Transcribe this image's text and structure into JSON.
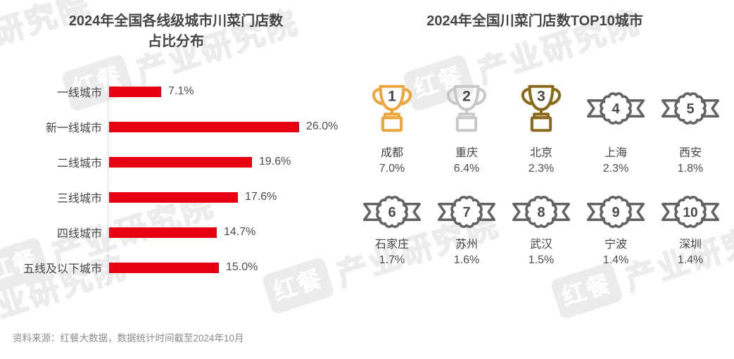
{
  "colors": {
    "bar-red": "#e60012",
    "gold": "#eda63c",
    "silver": "#c8c8c8",
    "bronze": "#8a691a",
    "badge-gray": "#636363",
    "title-text": "#454545",
    "body-text": "#4d4d4d",
    "source-text": "#8c8c8c",
    "axis-line": "#d9d9d9",
    "watermark": "#ececec"
  },
  "left_chart": {
    "title_line1": "2024年全国各线级城市川菜门店数",
    "title_line2": "占比分布"
  },
  "right_chart": {
    "title": "2024年全国川菜门店数TOP10城市"
  },
  "source_note": "资料来源：红餐大数据，数据统计时间截至2024年10月",
  "watermark": {
    "logo_text": "红餐",
    "text": "产业研究院"
  },
  "chart_data": [
    {
      "type": "bar",
      "orientation": "horizontal",
      "title": "2024年全国各线级城市川菜门店数占比分布",
      "categories": [
        "一线城市",
        "新一线城市",
        "二线城市",
        "三线城市",
        "四线城市",
        "五线及以下城市"
      ],
      "values": [
        7.1,
        26.0,
        19.6,
        17.6,
        14.7,
        15.0
      ],
      "labels": [
        "7.1%",
        "26.0%",
        "19.6%",
        "17.6%",
        "14.7%",
        "15.0%"
      ],
      "unit": "%",
      "xlim": [
        0,
        30
      ],
      "grid": false,
      "bar_color": "#e60012",
      "legend": "none"
    },
    {
      "type": "table",
      "title": "2024年全国川菜门店数TOP10城市",
      "columns": [
        "rank",
        "city",
        "share"
      ],
      "rows": [
        {
          "rank": "1",
          "city": "成都",
          "share": "7.0%",
          "icon": "trophy-gold"
        },
        {
          "rank": "2",
          "city": "重庆",
          "share": "6.4%",
          "icon": "trophy-silver"
        },
        {
          "rank": "3",
          "city": "北京",
          "share": "2.3%",
          "icon": "trophy-bronze"
        },
        {
          "rank": "4",
          "city": "上海",
          "share": "2.3%",
          "icon": "rosette-badge"
        },
        {
          "rank": "5",
          "city": "西安",
          "share": "1.8%",
          "icon": "rosette-badge"
        },
        {
          "rank": "6",
          "city": "石家庄",
          "share": "1.7%",
          "icon": "rosette-badge"
        },
        {
          "rank": "7",
          "city": "苏州",
          "share": "1.6%",
          "icon": "rosette-badge"
        },
        {
          "rank": "8",
          "city": "武汉",
          "share": "1.5%",
          "icon": "rosette-badge"
        },
        {
          "rank": "9",
          "city": "宁波",
          "share": "1.4%",
          "icon": "rosette-badge"
        },
        {
          "rank": "10",
          "city": "深圳",
          "share": "1.4%",
          "icon": "rosette-badge"
        }
      ]
    }
  ]
}
